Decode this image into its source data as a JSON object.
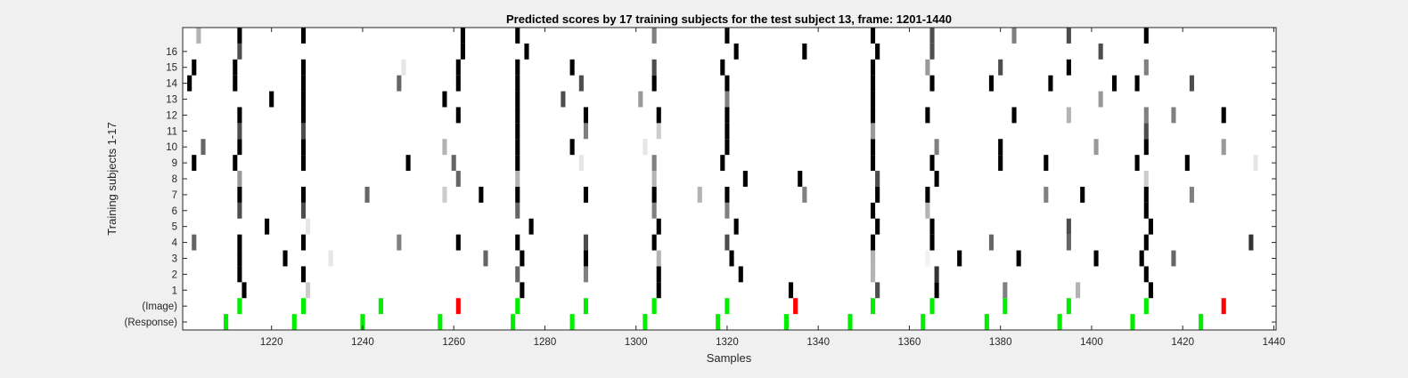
{
  "chart_data": {
    "type": "heatmap",
    "title": "Predicted scores by 17 training subjects for the test subject 13, frame: 1201-1440",
    "xlabel": "Samples",
    "ylabel": "Training subjects 1-17",
    "xlim": [
      1201,
      1440
    ],
    "x_ticks": [
      1220,
      1240,
      1260,
      1280,
      1300,
      1320,
      1340,
      1360,
      1380,
      1400,
      1420,
      1440
    ],
    "rows": [
      "(Response)",
      "(Image)",
      "1",
      "2",
      "3",
      "4",
      "5",
      "6",
      "7",
      "8",
      "9",
      "10",
      "11",
      "12",
      "13",
      "14",
      "15",
      "16",
      ""
    ],
    "value_scale": "0 = white, 1 = black (grayscale); markers in Image/Response rows shown in color",
    "colors": {
      "hit": "#00ee00",
      "miss": "#ff0000",
      "background": "#ffffff"
    },
    "response_markers": [
      1210,
      1225,
      1240,
      1257,
      1273,
      1286,
      1302,
      1318,
      1333,
      1347,
      1363,
      1377,
      1393,
      1409,
      1424
    ],
    "image_markers": [
      {
        "x": 1213,
        "color": "green"
      },
      {
        "x": 1227,
        "color": "green"
      },
      {
        "x": 1244,
        "color": "green"
      },
      {
        "x": 1261,
        "color": "red"
      },
      {
        "x": 1274,
        "color": "green"
      },
      {
        "x": 1289,
        "color": "green"
      },
      {
        "x": 1304,
        "color": "green"
      },
      {
        "x": 1320,
        "color": "green"
      },
      {
        "x": 1335,
        "color": "red"
      },
      {
        "x": 1352,
        "color": "green"
      },
      {
        "x": 1365,
        "color": "green"
      },
      {
        "x": 1381,
        "color": "green"
      },
      {
        "x": 1395,
        "color": "green"
      },
      {
        "x": 1412,
        "color": "green"
      },
      {
        "x": 1429,
        "color": "red"
      }
    ],
    "cells": [
      {
        "row": "1",
        "x": 1214,
        "v": 1.0
      },
      {
        "row": "1",
        "x": 1228,
        "v": 0.2
      },
      {
        "row": "1",
        "x": 1275,
        "v": 1.0
      },
      {
        "row": "1",
        "x": 1305,
        "v": 1.0
      },
      {
        "row": "1",
        "x": 1334,
        "v": 1.0
      },
      {
        "row": "1",
        "x": 1353,
        "v": 0.7
      },
      {
        "row": "1",
        "x": 1366,
        "v": 1.0
      },
      {
        "row": "1",
        "x": 1381,
        "v": 0.5
      },
      {
        "row": "1",
        "x": 1397,
        "v": 0.3
      },
      {
        "row": "1",
        "x": 1413,
        "v": 1.0
      },
      {
        "row": "2",
        "x": 1213,
        "v": 1.0
      },
      {
        "row": "2",
        "x": 1227,
        "v": 1.0
      },
      {
        "row": "2",
        "x": 1274,
        "v": 0.6
      },
      {
        "row": "2",
        "x": 1289,
        "v": 0.5
      },
      {
        "row": "2",
        "x": 1305,
        "v": 1.0
      },
      {
        "row": "2",
        "x": 1323,
        "v": 1.0
      },
      {
        "row": "2",
        "x": 1352,
        "v": 0.3
      },
      {
        "row": "2",
        "x": 1366,
        "v": 0.8
      },
      {
        "row": "2",
        "x": 1412,
        "v": 1.0
      },
      {
        "row": "3",
        "x": 1213,
        "v": 1.0
      },
      {
        "row": "3",
        "x": 1223,
        "v": 1.0
      },
      {
        "row": "3",
        "x": 1233,
        "v": 0.1
      },
      {
        "row": "3",
        "x": 1267,
        "v": 0.6
      },
      {
        "row": "3",
        "x": 1275,
        "v": 1.0
      },
      {
        "row": "3",
        "x": 1289,
        "v": 1.0
      },
      {
        "row": "3",
        "x": 1305,
        "v": 0.3
      },
      {
        "row": "3",
        "x": 1321,
        "v": 1.0
      },
      {
        "row": "3",
        "x": 1352,
        "v": 0.3
      },
      {
        "row": "3",
        "x": 1364,
        "v": 0.05
      },
      {
        "row": "3",
        "x": 1371,
        "v": 1.0
      },
      {
        "row": "3",
        "x": 1384,
        "v": 1.0
      },
      {
        "row": "3",
        "x": 1401,
        "v": 1.0
      },
      {
        "row": "3",
        "x": 1411,
        "v": 1.0
      },
      {
        "row": "3",
        "x": 1418,
        "v": 0.6
      },
      {
        "row": "4",
        "x": 1203,
        "v": 0.6
      },
      {
        "row": "4",
        "x": 1213,
        "v": 1.0
      },
      {
        "row": "4",
        "x": 1227,
        "v": 1.0
      },
      {
        "row": "4",
        "x": 1248,
        "v": 0.5
      },
      {
        "row": "4",
        "x": 1261,
        "v": 1.0
      },
      {
        "row": "4",
        "x": 1274,
        "v": 1.0
      },
      {
        "row": "4",
        "x": 1289,
        "v": 0.7
      },
      {
        "row": "4",
        "x": 1304,
        "v": 1.0
      },
      {
        "row": "4",
        "x": 1320,
        "v": 0.7
      },
      {
        "row": "4",
        "x": 1352,
        "v": 1.0
      },
      {
        "row": "4",
        "x": 1365,
        "v": 1.0
      },
      {
        "row": "4",
        "x": 1378,
        "v": 0.6
      },
      {
        "row": "4",
        "x": 1395,
        "v": 0.6
      },
      {
        "row": "4",
        "x": 1412,
        "v": 1.0
      },
      {
        "row": "4",
        "x": 1435,
        "v": 0.8
      },
      {
        "row": "5",
        "x": 1219,
        "v": 1.0
      },
      {
        "row": "5",
        "x": 1228,
        "v": 0.1
      },
      {
        "row": "5",
        "x": 1277,
        "v": 1.0
      },
      {
        "row": "5",
        "x": 1305,
        "v": 1.0
      },
      {
        "row": "5",
        "x": 1322,
        "v": 1.0
      },
      {
        "row": "5",
        "x": 1353,
        "v": 1.0
      },
      {
        "row": "5",
        "x": 1365,
        "v": 1.0
      },
      {
        "row": "5",
        "x": 1395,
        "v": 0.7
      },
      {
        "row": "5",
        "x": 1413,
        "v": 1.0
      },
      {
        "row": "6",
        "x": 1213,
        "v": 0.7
      },
      {
        "row": "6",
        "x": 1227,
        "v": 0.7
      },
      {
        "row": "6",
        "x": 1274,
        "v": 0.6
      },
      {
        "row": "6",
        "x": 1304,
        "v": 0.5
      },
      {
        "row": "6",
        "x": 1320,
        "v": 0.5
      },
      {
        "row": "6",
        "x": 1352,
        "v": 1.0
      },
      {
        "row": "6",
        "x": 1364,
        "v": 0.3
      },
      {
        "row": "6",
        "x": 1412,
        "v": 1.0
      },
      {
        "row": "7",
        "x": 1213,
        "v": 1.0
      },
      {
        "row": "7",
        "x": 1227,
        "v": 1.0
      },
      {
        "row": "7",
        "x": 1241,
        "v": 0.6
      },
      {
        "row": "7",
        "x": 1258,
        "v": 0.2
      },
      {
        "row": "7",
        "x": 1266,
        "v": 1.0
      },
      {
        "row": "7",
        "x": 1274,
        "v": 1.0
      },
      {
        "row": "7",
        "x": 1289,
        "v": 1.0
      },
      {
        "row": "7",
        "x": 1304,
        "v": 1.0
      },
      {
        "row": "7",
        "x": 1314,
        "v": 0.3
      },
      {
        "row": "7",
        "x": 1320,
        "v": 1.0
      },
      {
        "row": "7",
        "x": 1337,
        "v": 0.5
      },
      {
        "row": "7",
        "x": 1353,
        "v": 1.0
      },
      {
        "row": "7",
        "x": 1364,
        "v": 1.0
      },
      {
        "row": "7",
        "x": 1390,
        "v": 0.5
      },
      {
        "row": "7",
        "x": 1398,
        "v": 1.0
      },
      {
        "row": "7",
        "x": 1412,
        "v": 1.0
      },
      {
        "row": "7",
        "x": 1422,
        "v": 0.5
      },
      {
        "row": "8",
        "x": 1213,
        "v": 0.4
      },
      {
        "row": "8",
        "x": 1261,
        "v": 0.6
      },
      {
        "row": "8",
        "x": 1274,
        "v": 0.3
      },
      {
        "row": "8",
        "x": 1304,
        "v": 0.3
      },
      {
        "row": "8",
        "x": 1324,
        "v": 1.0
      },
      {
        "row": "8",
        "x": 1336,
        "v": 1.0
      },
      {
        "row": "8",
        "x": 1353,
        "v": 0.7
      },
      {
        "row": "8",
        "x": 1366,
        "v": 1.0
      },
      {
        "row": "8",
        "x": 1412,
        "v": 0.2
      },
      {
        "row": "9",
        "x": 1203,
        "v": 1.0
      },
      {
        "row": "9",
        "x": 1212,
        "v": 1.0
      },
      {
        "row": "9",
        "x": 1227,
        "v": 1.0
      },
      {
        "row": "9",
        "x": 1250,
        "v": 1.0
      },
      {
        "row": "9",
        "x": 1260,
        "v": 0.6
      },
      {
        "row": "9",
        "x": 1274,
        "v": 1.0
      },
      {
        "row": "9",
        "x": 1288,
        "v": 0.1
      },
      {
        "row": "9",
        "x": 1304,
        "v": 0.5
      },
      {
        "row": "9",
        "x": 1319,
        "v": 1.0
      },
      {
        "row": "9",
        "x": 1352,
        "v": 1.0
      },
      {
        "row": "9",
        "x": 1365,
        "v": 1.0
      },
      {
        "row": "9",
        "x": 1380,
        "v": 1.0
      },
      {
        "row": "9",
        "x": 1390,
        "v": 1.0
      },
      {
        "row": "9",
        "x": 1410,
        "v": 1.0
      },
      {
        "row": "9",
        "x": 1421,
        "v": 1.0
      },
      {
        "row": "9",
        "x": 1436,
        "v": 0.1
      },
      {
        "row": "10",
        "x": 1205,
        "v": 0.6
      },
      {
        "row": "10",
        "x": 1213,
        "v": 1.0
      },
      {
        "row": "10",
        "x": 1227,
        "v": 1.0
      },
      {
        "row": "10",
        "x": 1258,
        "v": 0.3
      },
      {
        "row": "10",
        "x": 1274,
        "v": 1.0
      },
      {
        "row": "10",
        "x": 1286,
        "v": 1.0
      },
      {
        "row": "10",
        "x": 1302,
        "v": 0.1
      },
      {
        "row": "10",
        "x": 1320,
        "v": 1.0
      },
      {
        "row": "10",
        "x": 1352,
        "v": 1.0
      },
      {
        "row": "10",
        "x": 1366,
        "v": 0.5
      },
      {
        "row": "10",
        "x": 1380,
        "v": 1.0
      },
      {
        "row": "10",
        "x": 1401,
        "v": 0.4
      },
      {
        "row": "10",
        "x": 1412,
        "v": 1.0
      },
      {
        "row": "10",
        "x": 1429,
        "v": 0.4
      },
      {
        "row": "11",
        "x": 1213,
        "v": 0.7
      },
      {
        "row": "11",
        "x": 1227,
        "v": 0.7
      },
      {
        "row": "11",
        "x": 1274,
        "v": 1.0
      },
      {
        "row": "11",
        "x": 1289,
        "v": 0.5
      },
      {
        "row": "11",
        "x": 1305,
        "v": 0.2
      },
      {
        "row": "11",
        "x": 1320,
        "v": 1.0
      },
      {
        "row": "11",
        "x": 1352,
        "v": 0.4
      },
      {
        "row": "11",
        "x": 1412,
        "v": 0.7
      },
      {
        "row": "12",
        "x": 1213,
        "v": 1.0
      },
      {
        "row": "12",
        "x": 1227,
        "v": 1.0
      },
      {
        "row": "12",
        "x": 1261,
        "v": 1.0
      },
      {
        "row": "12",
        "x": 1274,
        "v": 1.0
      },
      {
        "row": "12",
        "x": 1289,
        "v": 1.0
      },
      {
        "row": "12",
        "x": 1305,
        "v": 1.0
      },
      {
        "row": "12",
        "x": 1320,
        "v": 1.0
      },
      {
        "row": "12",
        "x": 1352,
        "v": 1.0
      },
      {
        "row": "12",
        "x": 1364,
        "v": 1.0
      },
      {
        "row": "12",
        "x": 1383,
        "v": 1.0
      },
      {
        "row": "12",
        "x": 1395,
        "v": 0.3
      },
      {
        "row": "12",
        "x": 1412,
        "v": 0.5
      },
      {
        "row": "12",
        "x": 1418,
        "v": 0.5
      },
      {
        "row": "12",
        "x": 1429,
        "v": 1.0
      },
      {
        "row": "13",
        "x": 1220,
        "v": 1.0
      },
      {
        "row": "13",
        "x": 1227,
        "v": 1.0
      },
      {
        "row": "13",
        "x": 1258,
        "v": 1.0
      },
      {
        "row": "13",
        "x": 1274,
        "v": 1.0
      },
      {
        "row": "13",
        "x": 1284,
        "v": 0.7
      },
      {
        "row": "13",
        "x": 1301,
        "v": 0.4
      },
      {
        "row": "13",
        "x": 1320,
        "v": 0.5
      },
      {
        "row": "13",
        "x": 1352,
        "v": 1.0
      },
      {
        "row": "13",
        "x": 1402,
        "v": 0.4
      },
      {
        "row": "14",
        "x": 1202,
        "v": 1.0
      },
      {
        "row": "14",
        "x": 1212,
        "v": 1.0
      },
      {
        "row": "14",
        "x": 1227,
        "v": 1.0
      },
      {
        "row": "14",
        "x": 1248,
        "v": 0.6
      },
      {
        "row": "14",
        "x": 1261,
        "v": 1.0
      },
      {
        "row": "14",
        "x": 1274,
        "v": 1.0
      },
      {
        "row": "14",
        "x": 1288,
        "v": 0.7
      },
      {
        "row": "14",
        "x": 1304,
        "v": 1.0
      },
      {
        "row": "14",
        "x": 1320,
        "v": 1.0
      },
      {
        "row": "14",
        "x": 1352,
        "v": 1.0
      },
      {
        "row": "14",
        "x": 1365,
        "v": 1.0
      },
      {
        "row": "14",
        "x": 1378,
        "v": 1.0
      },
      {
        "row": "14",
        "x": 1391,
        "v": 1.0
      },
      {
        "row": "14",
        "x": 1405,
        "v": 1.0
      },
      {
        "row": "14",
        "x": 1410,
        "v": 1.0
      },
      {
        "row": "14",
        "x": 1422,
        "v": 0.7
      },
      {
        "row": "15",
        "x": 1203,
        "v": 1.0
      },
      {
        "row": "15",
        "x": 1212,
        "v": 1.0
      },
      {
        "row": "15",
        "x": 1227,
        "v": 1.0
      },
      {
        "row": "15",
        "x": 1249,
        "v": 0.1
      },
      {
        "row": "15",
        "x": 1261,
        "v": 1.0
      },
      {
        "row": "15",
        "x": 1274,
        "v": 1.0
      },
      {
        "row": "15",
        "x": 1286,
        "v": 1.0
      },
      {
        "row": "15",
        "x": 1304,
        "v": 0.7
      },
      {
        "row": "15",
        "x": 1319,
        "v": 1.0
      },
      {
        "row": "15",
        "x": 1352,
        "v": 1.0
      },
      {
        "row": "15",
        "x": 1364,
        "v": 0.4
      },
      {
        "row": "15",
        "x": 1380,
        "v": 0.7
      },
      {
        "row": "15",
        "x": 1395,
        "v": 1.0
      },
      {
        "row": "15",
        "x": 1412,
        "v": 0.5
      },
      {
        "row": "16",
        "x": 1213,
        "v": 0.7
      },
      {
        "row": "16",
        "x": 1262,
        "v": 1.0
      },
      {
        "row": "16",
        "x": 1276,
        "v": 1.0
      },
      {
        "row": "16",
        "x": 1322,
        "v": 1.0
      },
      {
        "row": "16",
        "x": 1337,
        "v": 1.0
      },
      {
        "row": "16",
        "x": 1353,
        "v": 1.0
      },
      {
        "row": "16",
        "x": 1365,
        "v": 0.7
      },
      {
        "row": "16",
        "x": 1402,
        "v": 0.7
      },
      {
        "row": "",
        "x": 1204,
        "v": 0.3
      },
      {
        "row": "",
        "x": 1213,
        "v": 1.0
      },
      {
        "row": "",
        "x": 1227,
        "v": 1.0
      },
      {
        "row": "",
        "x": 1262,
        "v": 1.0
      },
      {
        "row": "",
        "x": 1274,
        "v": 1.0
      },
      {
        "row": "",
        "x": 1304,
        "v": 0.5
      },
      {
        "row": "",
        "x": 1320,
        "v": 1.0
      },
      {
        "row": "",
        "x": 1352,
        "v": 1.0
      },
      {
        "row": "",
        "x": 1365,
        "v": 0.7
      },
      {
        "row": "",
        "x": 1383,
        "v": 0.5
      },
      {
        "row": "",
        "x": 1395,
        "v": 0.7
      },
      {
        "row": "",
        "x": 1412,
        "v": 1.0
      }
    ],
    "grid": false,
    "legend": "none"
  }
}
